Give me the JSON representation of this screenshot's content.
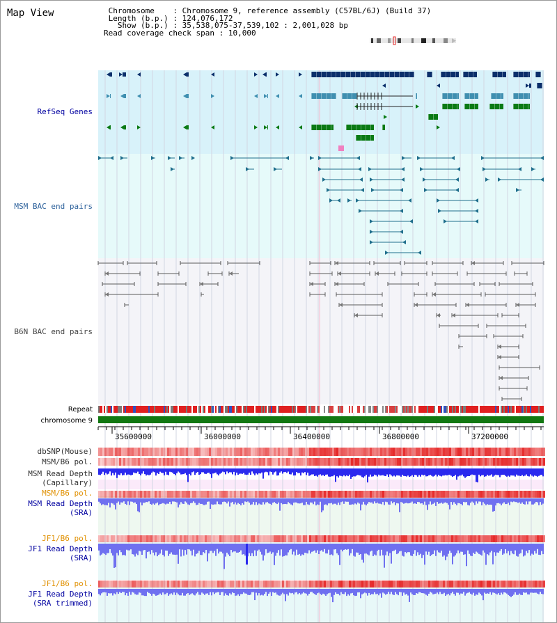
{
  "page_title": "Map View",
  "info": {
    "chromosome_label": "Chromosome",
    "chromosome_value": "Chromosome 9, reference assembly (C57BL/6J) (Build 37)",
    "length_label": "Length (b.p.)",
    "length_value": "124,076,172",
    "show_label": "Show (b.p.)",
    "show_value": "35,538,075-37,539,102 : 2,001,028 bp",
    "coverage_label": "Read coverage check span",
    "coverage_value": "10,000"
  },
  "tracks": {
    "refseq": "RefSeq Genes",
    "msm_bac": "MSM BAC end pairs",
    "b6n_bac": "B6N BAC end pairs",
    "repeat": "Repeat",
    "chromosome": "chromosome 9",
    "dbsnp": "dbSNP(Mouse)",
    "msm_b6_pol_1": "MSM/B6 pol.",
    "msm_read_depth_cap_1": "MSM Read Depth",
    "msm_read_depth_cap_2": "(Capillary)",
    "msm_b6_pol_2": "MSM/B6 pol.",
    "msm_read_depth_sra_1": "MSM Read Depth",
    "msm_read_depth_sra_2": "(SRA)",
    "jf1_b6_pol_1": "JF1/B6 pol.",
    "jf1_read_depth_sra_1": "JF1 Read Depth",
    "jf1_read_depth_sra_2": "(SRA)",
    "jf1_b6_pol_2": "JF1/B6 pol.",
    "jf1_read_depth_trim_1": "JF1 Read Depth",
    "jf1_read_depth_trim_2": "(SRA trimmed)"
  },
  "axis": {
    "ticks": [
      "35600000",
      "36000000",
      "36400000",
      "36800000",
      "37200000"
    ]
  },
  "colors": {
    "refseq_bg": "#d8f2fa",
    "msm_bg": "#e6fafa",
    "b6n_bg": "#f4f4f8",
    "gene_navy": "#0b2f6b",
    "gene_teal": "#3f8fb0",
    "gene_green": "#0a7a14",
    "msm_line": "#1f6e8c",
    "b6n_line": "#5a5a5a",
    "chromosome_bar": "#127812",
    "depth_blue": "#2a2aee",
    "depth_lightblue": "#6f70f0",
    "pol_red": "#e02020",
    "label_navy": "#0000a0",
    "label_orange": "#e09000",
    "label_msm": "#2a5f9a"
  }
}
